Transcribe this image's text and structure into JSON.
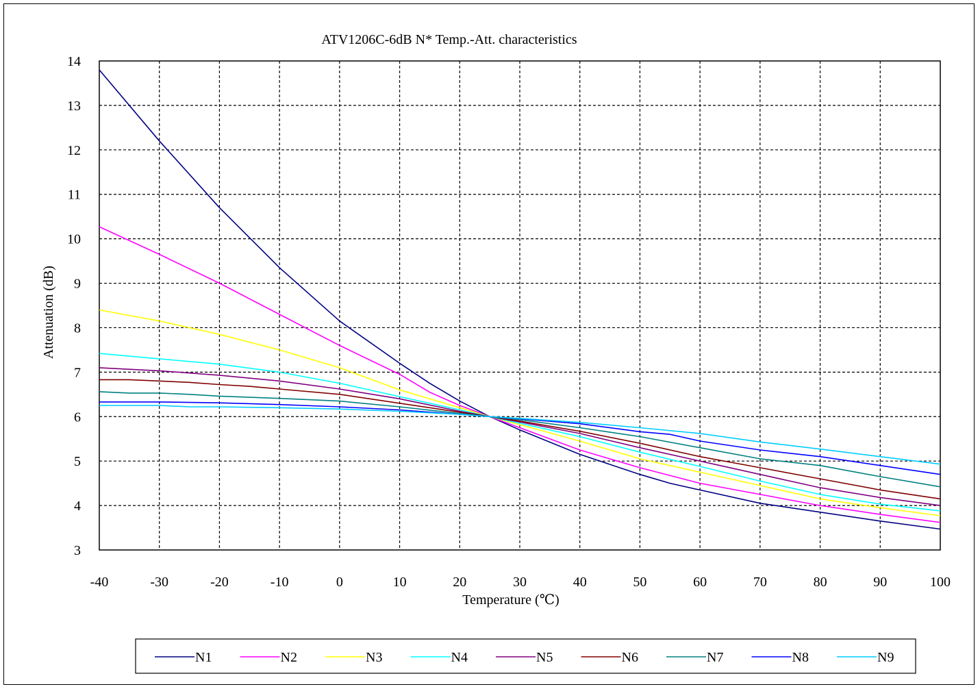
{
  "chart_data": {
    "type": "line",
    "title": "ATV1206C-6dB  N* Temp.-Att. characteristics",
    "xlabel": "Temperature (℃)",
    "ylabel": "Attenuation (dB)",
    "xlim": [
      -40,
      100
    ],
    "ylim": [
      3,
      14
    ],
    "x_ticks": [
      "-40",
      "-30",
      "-20",
      "-10",
      "0",
      "10",
      "20",
      "30",
      "40",
      "50",
      "60",
      "70",
      "80",
      "90",
      "100"
    ],
    "y_ticks": [
      "3",
      "4",
      "5",
      "6",
      "7",
      "8",
      "9",
      "10",
      "11",
      "12",
      "13",
      "14"
    ],
    "grid": "dashed",
    "legend_position": "bottom",
    "series": [
      {
        "name": "N1",
        "color": "#000080",
        "x": [
          -40,
          -30,
          -20,
          -10,
          0,
          10,
          15,
          20,
          25,
          30,
          40,
          50,
          55,
          60,
          70,
          75,
          80,
          90,
          100
        ],
        "y": [
          13.8,
          12.2,
          10.7,
          9.35,
          8.15,
          7.2,
          6.75,
          6.35,
          6.0,
          5.7,
          5.15,
          4.7,
          4.5,
          4.35,
          4.05,
          3.95,
          3.85,
          3.65,
          3.47
        ]
      },
      {
        "name": "N2",
        "color": "#ff00ff",
        "x": [
          -40,
          -30,
          -20,
          -10,
          0,
          10,
          15,
          20,
          25,
          30,
          40,
          50,
          60,
          70,
          80,
          90,
          100
        ],
        "y": [
          10.27,
          9.65,
          9.0,
          8.3,
          7.6,
          6.95,
          6.55,
          6.25,
          6.0,
          5.75,
          5.25,
          4.85,
          4.5,
          4.25,
          4.0,
          3.8,
          3.62
        ]
      },
      {
        "name": "N3",
        "color": "#ffff00",
        "x": [
          -40,
          -30,
          -20,
          -10,
          0,
          10,
          20,
          25,
          30,
          40,
          50,
          60,
          70,
          80,
          90,
          100
        ],
        "y": [
          8.4,
          8.15,
          7.85,
          7.5,
          7.1,
          6.6,
          6.2,
          6.0,
          5.82,
          5.45,
          5.05,
          4.75,
          4.45,
          4.15,
          3.95,
          3.77
        ]
      },
      {
        "name": "N4",
        "color": "#00ffff",
        "x": [
          -40,
          -30,
          -20,
          -10,
          0,
          10,
          20,
          25,
          30,
          40,
          50,
          60,
          70,
          80,
          90,
          100
        ],
        "y": [
          7.42,
          7.3,
          7.18,
          7.0,
          6.75,
          6.45,
          6.15,
          6.0,
          5.85,
          5.55,
          5.2,
          4.88,
          4.55,
          4.25,
          4.03,
          3.88
        ]
      },
      {
        "name": "N5",
        "color": "#800080",
        "x": [
          -40,
          -30,
          -20,
          -10,
          0,
          10,
          20,
          25,
          30,
          40,
          50,
          60,
          70,
          80,
          90,
          100
        ],
        "y": [
          7.1,
          7.03,
          6.93,
          6.8,
          6.62,
          6.4,
          6.12,
          6.0,
          5.88,
          5.62,
          5.3,
          5.0,
          4.7,
          4.4,
          4.18,
          4.0
        ]
      },
      {
        "name": "N6",
        "color": "#800000",
        "x": [
          -40,
          -35,
          -30,
          -25,
          -20,
          -15,
          -10,
          0,
          10,
          20,
          25,
          30,
          40,
          50,
          60,
          70,
          80,
          90,
          95,
          100
        ],
        "y": [
          6.83,
          6.83,
          6.8,
          6.77,
          6.72,
          6.68,
          6.62,
          6.5,
          6.3,
          6.1,
          6.0,
          5.9,
          5.67,
          5.4,
          5.1,
          4.85,
          4.6,
          4.35,
          4.25,
          4.15
        ]
      },
      {
        "name": "N7",
        "color": "#008080",
        "x": [
          -40,
          -35,
          -30,
          -25,
          -20,
          -10,
          0,
          10,
          20,
          25,
          30,
          40,
          50,
          60,
          70,
          80,
          90,
          100
        ],
        "y": [
          6.56,
          6.53,
          6.53,
          6.5,
          6.46,
          6.41,
          6.35,
          6.22,
          6.07,
          6.0,
          5.93,
          5.75,
          5.55,
          5.3,
          5.05,
          4.9,
          4.65,
          4.42
        ]
      },
      {
        "name": "N8",
        "color": "#0000ff",
        "x": [
          -40,
          -30,
          -20,
          -10,
          0,
          10,
          20,
          25,
          30,
          40,
          50,
          55,
          60,
          70,
          80,
          90,
          100
        ],
        "y": [
          6.33,
          6.33,
          6.31,
          6.27,
          6.22,
          6.15,
          6.05,
          6.0,
          5.95,
          5.84,
          5.66,
          5.6,
          5.45,
          5.25,
          5.1,
          4.9,
          4.7
        ]
      },
      {
        "name": "N9",
        "color": "#00ccff",
        "x": [
          -40,
          -30,
          -25,
          -20,
          -10,
          0,
          10,
          20,
          25,
          30,
          40,
          50,
          60,
          70,
          80,
          90,
          100
        ],
        "y": [
          6.25,
          6.25,
          6.22,
          6.22,
          6.2,
          6.17,
          6.12,
          6.05,
          6.0,
          5.96,
          5.87,
          5.75,
          5.62,
          5.43,
          5.27,
          5.1,
          4.93
        ]
      }
    ]
  }
}
